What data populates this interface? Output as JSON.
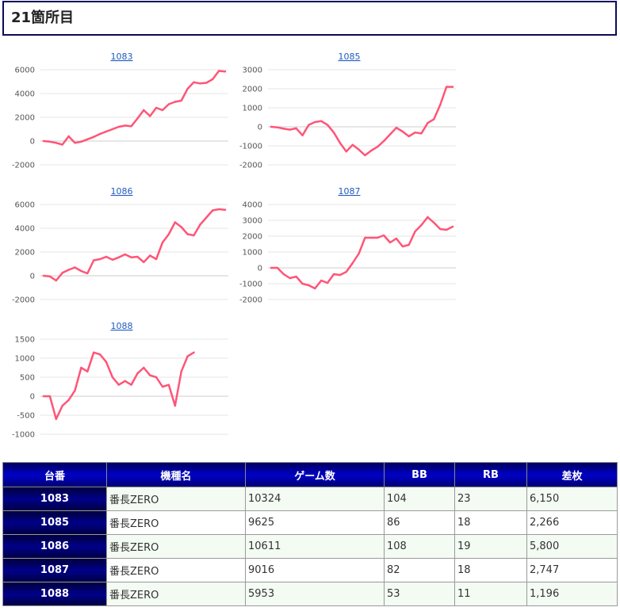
{
  "header": {
    "title": "21箇所目"
  },
  "chart_data": [
    {
      "type": "line",
      "title": "1083",
      "yticks": [
        6000,
        4000,
        2000,
        0,
        -2000
      ],
      "ylim": [
        -2000,
        6000
      ],
      "color": "#ff5577",
      "x": [
        1,
        2,
        3,
        4,
        5,
        6,
        7,
        8,
        9,
        10,
        11,
        12,
        13,
        14,
        15,
        16,
        17,
        18,
        19,
        20,
        21,
        22,
        23,
        24,
        25,
        26,
        27,
        28,
        29,
        30
      ],
      "values": [
        0,
        -50,
        -150,
        -300,
        400,
        -150,
        -50,
        150,
        350,
        600,
        800,
        1000,
        1200,
        1300,
        1250,
        1900,
        2600,
        2100,
        2800,
        2600,
        3100,
        3300,
        3400,
        4400,
        4950,
        4850,
        4900,
        5200,
        5900,
        5850
      ]
    },
    {
      "type": "line",
      "title": "1085",
      "yticks": [
        3000,
        2000,
        1000,
        0,
        -1000,
        -2000
      ],
      "ylim": [
        -2000,
        3000
      ],
      "color": "#ff5577",
      "x": [
        1,
        2,
        3,
        4,
        5,
        6,
        7,
        8,
        9,
        10,
        11,
        12,
        13,
        14,
        15,
        16,
        17,
        18,
        19,
        20,
        21,
        22,
        23,
        24,
        25,
        26,
        27,
        28,
        29,
        30
      ],
      "values": [
        0,
        -30,
        -100,
        -150,
        -80,
        -450,
        100,
        250,
        300,
        100,
        -300,
        -850,
        -1300,
        -950,
        -1200,
        -1500,
        -1250,
        -1050,
        -750,
        -400,
        -50,
        -250,
        -500,
        -300,
        -350,
        200,
        400,
        1150,
        2100,
        2100
      ]
    },
    {
      "type": "line",
      "title": "1086",
      "yticks": [
        6000,
        4000,
        2000,
        0,
        -2000
      ],
      "ylim": [
        -2000,
        6000
      ],
      "color": "#ff5577",
      "x": [
        1,
        2,
        3,
        4,
        5,
        6,
        7,
        8,
        9,
        10,
        11,
        12,
        13,
        14,
        15,
        16,
        17,
        18,
        19,
        20,
        21,
        22,
        23,
        24,
        25,
        26,
        27,
        28,
        29,
        30
      ],
      "values": [
        0,
        -50,
        -400,
        250,
        500,
        700,
        400,
        200,
        1300,
        1400,
        1600,
        1350,
        1550,
        1800,
        1550,
        1600,
        1150,
        1700,
        1400,
        2800,
        3500,
        4500,
        4100,
        3500,
        3400,
        4300,
        4900,
        5500,
        5600,
        5550
      ]
    },
    {
      "type": "line",
      "title": "1087",
      "yticks": [
        4000,
        3000,
        2000,
        1000,
        0,
        -1000,
        -2000
      ],
      "ylim": [
        -2000,
        4000
      ],
      "color": "#ff5577",
      "x": [
        1,
        2,
        3,
        4,
        5,
        6,
        7,
        8,
        9,
        10,
        11,
        12,
        13,
        14,
        15,
        16,
        17,
        18,
        19,
        20,
        21,
        22,
        23,
        24,
        25,
        26,
        27,
        28,
        29,
        30
      ],
      "values": [
        0,
        0,
        -400,
        -650,
        -550,
        -1000,
        -1100,
        -1300,
        -800,
        -950,
        -400,
        -450,
        -250,
        300,
        900,
        1900,
        1900,
        1900,
        2050,
        1600,
        1850,
        1350,
        1450,
        2300,
        2700,
        3200,
        2850,
        2450,
        2400,
        2600
      ]
    },
    {
      "type": "line",
      "title": "1088",
      "yticks": [
        1500,
        1000,
        500,
        0,
        -500,
        -1000
      ],
      "ylim": [
        -1000,
        1500
      ],
      "color": "#ff5577",
      "x": [
        1,
        2,
        3,
        4,
        5,
        6,
        7,
        8,
        9,
        10,
        11,
        12,
        13,
        14,
        15,
        16,
        17,
        18,
        19,
        20,
        21,
        22,
        23,
        24,
        25
      ],
      "values": [
        0,
        0,
        -600,
        -250,
        -100,
        150,
        750,
        650,
        1150,
        1100,
        900,
        500,
        300,
        400,
        300,
        600,
        750,
        550,
        500,
        250,
        300,
        -250,
        650,
        1050,
        1150
      ]
    }
  ],
  "table": {
    "headers": [
      "台番",
      "機種名",
      "ゲーム数",
      "BB",
      "RB",
      "差枚"
    ],
    "rows": [
      [
        "1083",
        "番長ZERO",
        "10324",
        "104",
        "23",
        "6,150"
      ],
      [
        "1085",
        "番長ZERO",
        "9625",
        "86",
        "18",
        "2,266"
      ],
      [
        "1086",
        "番長ZERO",
        "10611",
        "108",
        "19",
        "5,800"
      ],
      [
        "1087",
        "番長ZERO",
        "9016",
        "82",
        "18",
        "2,747"
      ],
      [
        "1088",
        "番長ZERO",
        "5953",
        "53",
        "11",
        "1,196"
      ]
    ]
  }
}
